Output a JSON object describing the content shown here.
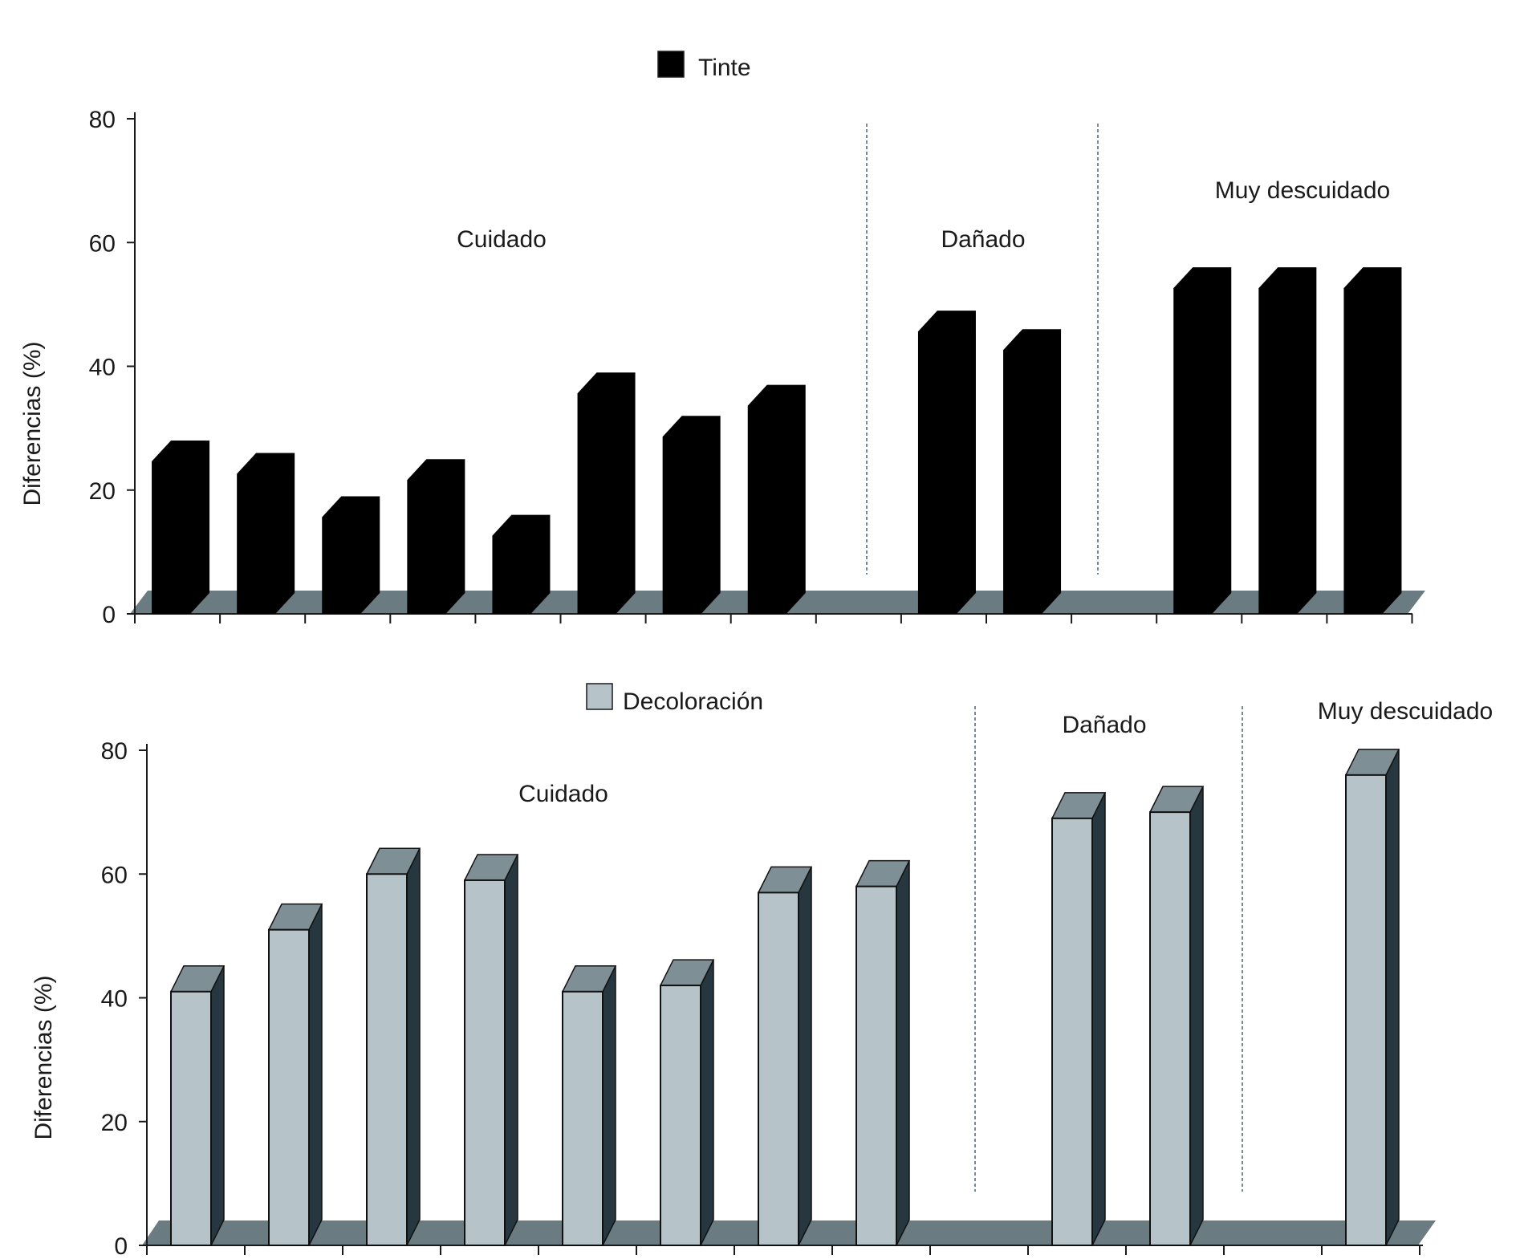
{
  "colors": {
    "floor": "#6a7b82",
    "axis": "#1a1a1a",
    "divider": "#7a8a92"
  },
  "chart_data": [
    {
      "type": "bar",
      "style": "3d",
      "legend": {
        "label": "Tinte",
        "color": "#000000",
        "placement": "top-center"
      },
      "ylabel": "Diferencias (%)",
      "ylim": [
        0,
        80
      ],
      "yticks": [
        "0",
        "20",
        "40",
        "60",
        "80"
      ],
      "grid": false,
      "groups": [
        "Cuidado",
        "Dañado",
        "Muy descuidado"
      ],
      "values": [
        28,
        26,
        19,
        25,
        16,
        39,
        32,
        37,
        null,
        49,
        46,
        null,
        56,
        56,
        56
      ],
      "group_of": [
        0,
        0,
        0,
        0,
        0,
        0,
        0,
        0,
        null,
        1,
        1,
        null,
        2,
        2,
        2
      ]
    },
    {
      "type": "bar",
      "style": "3d",
      "legend": {
        "label": "Decoloración",
        "color": "#b6c4c9",
        "placement": "top-center"
      },
      "ylabel": "Diferencias (%)",
      "ylim": [
        0,
        80
      ],
      "yticks": [
        "0",
        "20",
        "40",
        "60",
        "80"
      ],
      "grid": false,
      "groups": [
        "Cuidado",
        "Dañado",
        "Muy descuidado"
      ],
      "values": [
        41,
        51,
        60,
        59,
        41,
        42,
        57,
        58,
        null,
        69,
        70,
        null,
        76
      ],
      "group_of": [
        0,
        0,
        0,
        0,
        0,
        0,
        0,
        0,
        null,
        1,
        1,
        null,
        2
      ]
    }
  ]
}
